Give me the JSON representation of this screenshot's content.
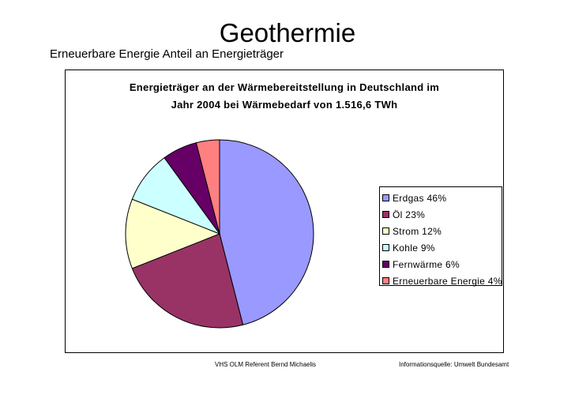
{
  "slide": {
    "title": "Geothermie",
    "subtitle": "Erneuerbare Energie Anteil an Energieträger"
  },
  "chart_data": {
    "type": "pie",
    "title_lines": [
      "Energieträger an der Wärmebereitstellung in Deutschland im",
      "Jahr 2004 bei Wärmebedarf von 1.516,6 TWh"
    ],
    "legend_position": "right",
    "slices": [
      {
        "label": "Erdgas 46%",
        "value": 46,
        "color": "#9999ff"
      },
      {
        "label": "Öl 23%",
        "value": 23,
        "color": "#993366"
      },
      {
        "label": "Strom 12%",
        "value": 12,
        "color": "#ffffcc"
      },
      {
        "label": "Kohle 9%",
        "value": 9,
        "color": "#ccffff"
      },
      {
        "label": "Fernwärme 6%",
        "value": 6,
        "color": "#660066"
      },
      {
        "label": "Erneuerbare Energie 4%",
        "value": 4,
        "color": "#ff8080"
      }
    ]
  },
  "footer": {
    "author": "VHS OLM Referent Bernd Michaelis",
    "source": "Informationsquelle: Umwelt Bundesamt"
  }
}
